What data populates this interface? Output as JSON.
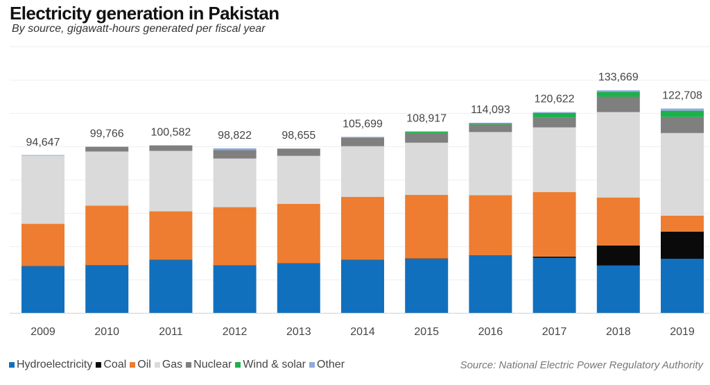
{
  "title": "Electricity generation in Pakistan",
  "subtitle": "By source, gigawatt-hours  generated  per fiscal year",
  "source": "Source: National Electric Power Regulatory Authority",
  "chart_data": {
    "type": "bar",
    "stacked": true,
    "title": "Electricity generation in Pakistan",
    "subtitle": "By source, gigawatt-hours generated per fiscal year",
    "xlabel": "",
    "ylabel": "",
    "ylim": [
      0,
      160000
    ],
    "y_gridlines": [
      20000,
      40000,
      60000,
      80000,
      100000,
      120000,
      140000,
      160000
    ],
    "grid": true,
    "legend_position": "bottom-left",
    "categories": [
      "2009",
      "2010",
      "2011",
      "2012",
      "2013",
      "2014",
      "2015",
      "2016",
      "2017",
      "2018",
      "2019"
    ],
    "totals": [
      94647,
      99766,
      100582,
      98822,
      98655,
      105699,
      108917,
      114093,
      120622,
      133669,
      122708
    ],
    "total_labels": [
      "94,647",
      "99,766",
      "100,582",
      "98,822",
      "98,655",
      "105,699",
      "108,917",
      "114,093",
      "120,622",
      "133,669",
      "122,708"
    ],
    "series": [
      {
        "name": "Hydroelectricity",
        "color": "#1170BE",
        "values": [
          28000,
          28500,
          31700,
          28400,
          29600,
          31700,
          32500,
          34200,
          33000,
          28400,
          32500
        ]
      },
      {
        "name": "Coal",
        "color": "#0A0A0A",
        "values": [
          100,
          100,
          100,
          100,
          100,
          100,
          100,
          200,
          800,
          12100,
          16300
        ]
      },
      {
        "name": "Oil",
        "color": "#EE7D31",
        "values": [
          25400,
          35800,
          29200,
          35000,
          35800,
          37900,
          38300,
          36300,
          38800,
          28800,
          9600
        ]
      },
      {
        "name": "Gas",
        "color": "#DADADA",
        "values": [
          40900,
          32500,
          36300,
          29200,
          28800,
          30400,
          31300,
          37900,
          38800,
          51300,
          49600
        ]
      },
      {
        "name": "Nuclear",
        "color": "#7F7F7F",
        "values": [
          0,
          2866,
          3282,
          5000,
          4355,
          5200,
          5800,
          4600,
          5800,
          9200,
          9600
        ]
      },
      {
        "name": "Wind & solar",
        "color": "#1DB14B",
        "values": [
          0,
          0,
          0,
          0,
          0,
          0,
          917,
          600,
          2900,
          2900,
          3800
        ]
      },
      {
        "name": "Other",
        "color": "#8FAADC",
        "values": [
          247,
          0,
          0,
          1122,
          0,
          399,
          0,
          293,
          522,
          969,
          1308
        ]
      }
    ]
  }
}
